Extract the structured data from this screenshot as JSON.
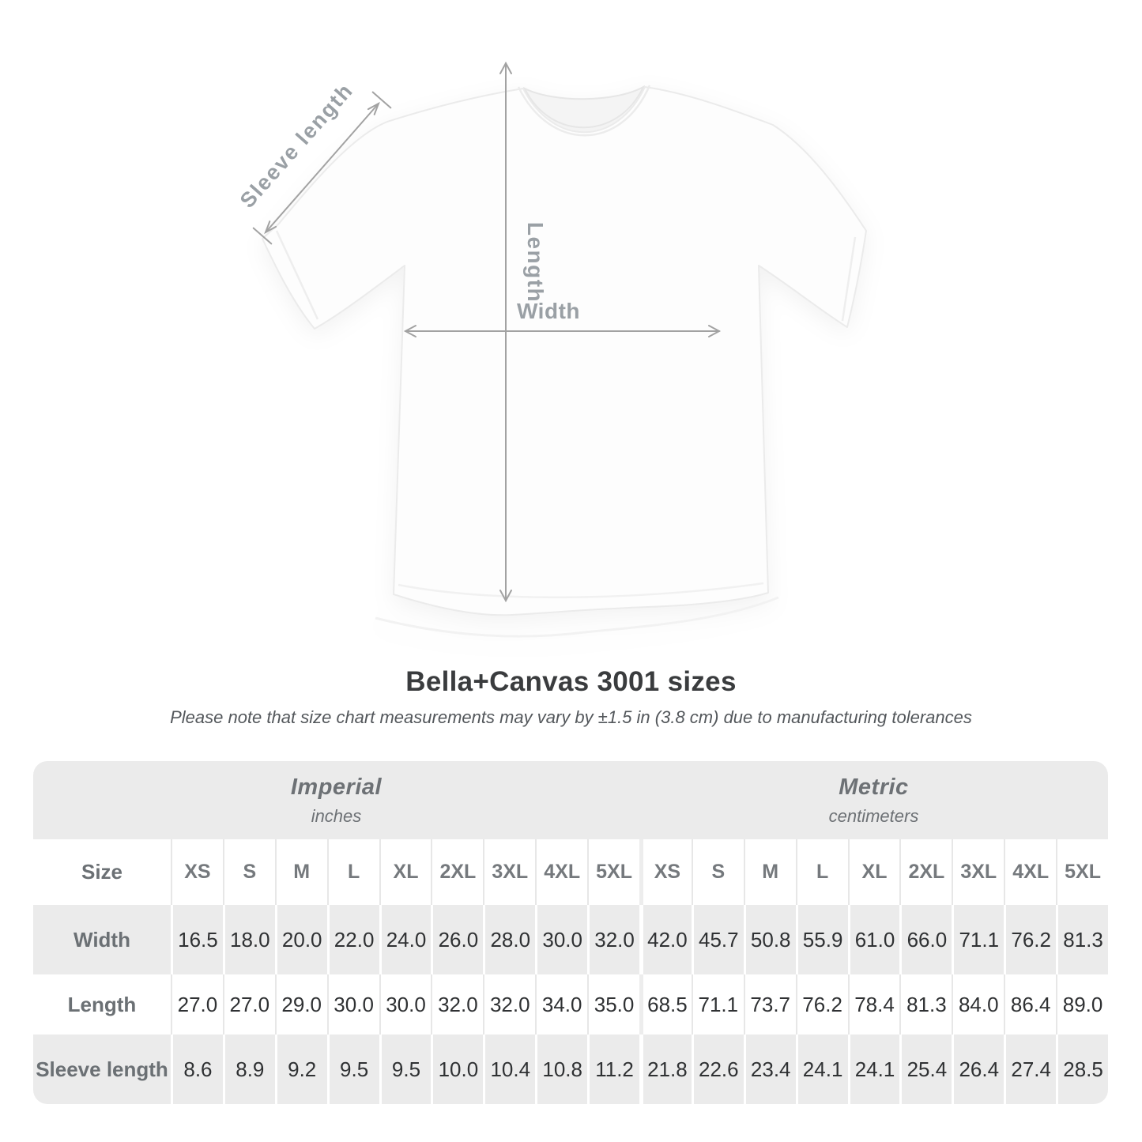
{
  "title": "Bella+Canvas 3001 sizes",
  "subtitle": "Please note that size chart measurements may vary by ±1.5 in (3.8 cm) due to manufacturing tolerances",
  "diagram": {
    "sleeve_label": "Sleeve length",
    "length_label": "Length",
    "width_label": "Width",
    "arrow_color": "#a2a2a2",
    "label_color": "#9aa0a5"
  },
  "table": {
    "header_bg": "#ebebeb",
    "alt_row_bg": "#ebebeb",
    "groups": [
      {
        "label": "Imperial",
        "unit": "inches"
      },
      {
        "label": "Metric",
        "unit": "centimeters"
      }
    ],
    "size_header": "Size",
    "sizes": [
      "XS",
      "S",
      "M",
      "L",
      "XL",
      "2XL",
      "3XL",
      "4XL",
      "5XL"
    ],
    "rows": [
      {
        "label": "Width",
        "imperial": [
          "16.5",
          "18.0",
          "20.0",
          "22.0",
          "24.0",
          "26.0",
          "28.0",
          "30.0",
          "32.0"
        ],
        "metric": [
          "42.0",
          "45.7",
          "50.8",
          "55.9",
          "61.0",
          "66.0",
          "71.1",
          "76.2",
          "81.3"
        ]
      },
      {
        "label": "Length",
        "imperial": [
          "27.0",
          "27.0",
          "29.0",
          "30.0",
          "30.0",
          "32.0",
          "32.0",
          "34.0",
          "35.0"
        ],
        "metric": [
          "68.5",
          "71.1",
          "73.7",
          "76.2",
          "78.4",
          "81.3",
          "84.0",
          "86.4",
          "89.0"
        ]
      },
      {
        "label": "Sleeve length",
        "imperial": [
          "8.6",
          "8.9",
          "9.2",
          "9.5",
          "9.5",
          "10.0",
          "10.4",
          "10.8",
          "11.2"
        ],
        "metric": [
          "21.8",
          "22.6",
          "23.4",
          "24.1",
          "24.1",
          "25.4",
          "26.4",
          "27.4",
          "28.5"
        ]
      }
    ]
  },
  "chart_data": {
    "type": "table",
    "title": "Bella+Canvas 3001 sizes",
    "note": "Please note that size chart measurements may vary by ±1.5 in (3.8 cm) due to manufacturing tolerances",
    "column_groups": [
      "Imperial (inches)",
      "Metric (centimeters)"
    ],
    "sizes": [
      "XS",
      "S",
      "M",
      "L",
      "XL",
      "2XL",
      "3XL",
      "4XL",
      "5XL"
    ],
    "rows": [
      {
        "label": "Width",
        "imperial": [
          16.5,
          18.0,
          20.0,
          22.0,
          24.0,
          26.0,
          28.0,
          30.0,
          32.0
        ],
        "metric": [
          42.0,
          45.7,
          50.8,
          55.9,
          61.0,
          66.0,
          71.1,
          76.2,
          81.3
        ]
      },
      {
        "label": "Length",
        "imperial": [
          27.0,
          27.0,
          29.0,
          30.0,
          30.0,
          32.0,
          32.0,
          34.0,
          35.0
        ],
        "metric": [
          68.5,
          71.1,
          73.7,
          76.2,
          78.4,
          81.3,
          84.0,
          86.4,
          89.0
        ]
      },
      {
        "label": "Sleeve length",
        "imperial": [
          8.6,
          8.9,
          9.2,
          9.5,
          9.5,
          10.0,
          10.4,
          10.8,
          11.2
        ],
        "metric": [
          21.8,
          22.6,
          23.4,
          24.1,
          24.1,
          25.4,
          26.4,
          27.4,
          28.5
        ]
      }
    ]
  }
}
